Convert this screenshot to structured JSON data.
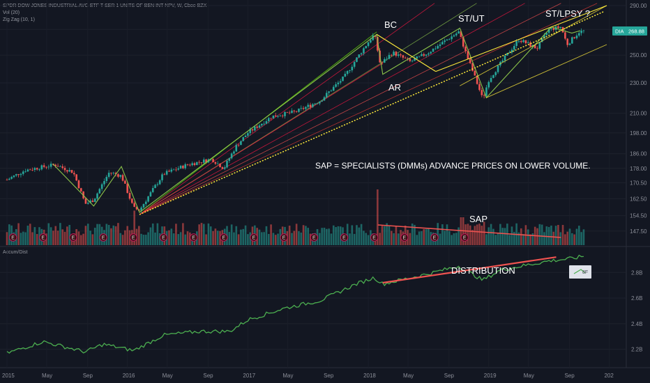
{
  "header": {
    "symbol_line": "SPDR DOW JONES INDUSTRIAL AVG ETF T SER 1 UNITS OF BEN INT NPV, W, Cboe BZX",
    "vol_line": "Vol (20)",
    "zigzag_line": "Zig Zag (10, 1)"
  },
  "lower_pane": {
    "title": "Accum/Dist"
  },
  "price_badge": {
    "ticker": "DIA",
    "value": "268.88"
  },
  "annotations": {
    "bc": "BC",
    "ar": "AR",
    "st_ut": "ST/UT",
    "st_lpsy": "ST/LPSY ?",
    "sap_note": "SAP = SPECIALISTS (DMMs) ADVANCE PRICES ON LOWER VOLUME.",
    "sap": "SAP",
    "distribution": "DISTRIBUTION",
    "earnings_marker": "E",
    "alert_icon": "bell-icon",
    "alert_value": "8F"
  },
  "colors": {
    "background": "#131722",
    "up": "#26a69a",
    "down": "#ef5350",
    "adline": "#4caf50",
    "trendline_yellow": "#ffeb3b",
    "fan_green": "#76ff03",
    "fan_red": "#ff1744"
  },
  "chart_data": {
    "type": "candlestick",
    "timeframe": "W",
    "price_axis_ticks": [
      "290.00",
      "270.00",
      "250.00",
      "230.00",
      "210.00",
      "198.00",
      "186.00",
      "178.00",
      "170.50",
      "162.50",
      "154.50",
      "147.50"
    ],
    "ad_axis_ticks": [
      "2.8B",
      "2.6B",
      "2.4B",
      "2.2B"
    ],
    "time_axis_ticks": [
      "2015",
      "May",
      "Sep",
      "2016",
      "May",
      "Sep",
      "2017",
      "May",
      "Sep",
      "2018",
      "May",
      "Sep",
      "2019",
      "May",
      "Sep",
      "202"
    ],
    "price_range": [
      145,
      290
    ],
    "ad_range": [
      2.1,
      2.97
    ],
    "last_price": 268.88,
    "price_path": [
      {
        "x": 2015.0,
        "y": 172
      },
      {
        "x": 2015.15,
        "y": 177
      },
      {
        "x": 2015.4,
        "y": 180
      },
      {
        "x": 2015.55,
        "y": 176
      },
      {
        "x": 2015.65,
        "y": 160
      },
      {
        "x": 2015.72,
        "y": 162
      },
      {
        "x": 2015.85,
        "y": 176
      },
      {
        "x": 2015.95,
        "y": 174
      },
      {
        "x": 2016.05,
        "y": 158
      },
      {
        "x": 2016.1,
        "y": 157
      },
      {
        "x": 2016.3,
        "y": 175
      },
      {
        "x": 2016.5,
        "y": 180
      },
      {
        "x": 2016.7,
        "y": 183
      },
      {
        "x": 2016.8,
        "y": 178
      },
      {
        "x": 2016.9,
        "y": 190
      },
      {
        "x": 2017.0,
        "y": 198
      },
      {
        "x": 2017.2,
        "y": 208
      },
      {
        "x": 2017.4,
        "y": 211
      },
      {
        "x": 2017.6,
        "y": 218
      },
      {
        "x": 2017.8,
        "y": 234
      },
      {
        "x": 2018.0,
        "y": 260
      },
      {
        "x": 2018.05,
        "y": 266
      },
      {
        "x": 2018.1,
        "y": 243
      },
      {
        "x": 2018.2,
        "y": 252
      },
      {
        "x": 2018.35,
        "y": 245
      },
      {
        "x": 2018.5,
        "y": 252
      },
      {
        "x": 2018.75,
        "y": 268
      },
      {
        "x": 2018.82,
        "y": 249
      },
      {
        "x": 2018.95,
        "y": 219
      },
      {
        "x": 2019.0,
        "y": 232
      },
      {
        "x": 2019.25,
        "y": 262
      },
      {
        "x": 2019.4,
        "y": 255
      },
      {
        "x": 2019.5,
        "y": 270
      },
      {
        "x": 2019.6,
        "y": 272
      },
      {
        "x": 2019.65,
        "y": 258
      },
      {
        "x": 2019.75,
        "y": 268
      },
      {
        "x": 2019.8,
        "y": 268.88
      }
    ],
    "zigzag": [
      {
        "x": 2015.38,
        "y": 180.5
      },
      {
        "x": 2015.72,
        "y": 159
      },
      {
        "x": 2015.95,
        "y": 179
      },
      {
        "x": 2016.1,
        "y": 156
      },
      {
        "x": 2018.07,
        "y": 266
      },
      {
        "x": 2018.12,
        "y": 236
      },
      {
        "x": 2018.76,
        "y": 271
      },
      {
        "x": 2018.98,
        "y": 220
      },
      {
        "x": 2019.52,
        "y": 272
      },
      {
        "x": 2019.69,
        "y": 267
      },
      {
        "x": 2019.76,
        "y": 269
      }
    ],
    "volume_spikes": [
      {
        "x": 2016.06,
        "rel": 0.62
      },
      {
        "x": 2018.08,
        "rel": 1.0
      },
      {
        "x": 2018.78,
        "rel": 0.5
      },
      {
        "x": 2018.96,
        "rel": 0.42
      }
    ],
    "ad_line": [
      {
        "x": 2015.0,
        "y": 2.17
      },
      {
        "x": 2015.3,
        "y": 2.26
      },
      {
        "x": 2015.65,
        "y": 2.18
      },
      {
        "x": 2015.8,
        "y": 2.24
      },
      {
        "x": 2016.05,
        "y": 2.19
      },
      {
        "x": 2016.3,
        "y": 2.31
      },
      {
        "x": 2016.6,
        "y": 2.34
      },
      {
        "x": 2016.85,
        "y": 2.34
      },
      {
        "x": 2017.0,
        "y": 2.43
      },
      {
        "x": 2017.3,
        "y": 2.52
      },
      {
        "x": 2017.6,
        "y": 2.58
      },
      {
        "x": 2017.9,
        "y": 2.71
      },
      {
        "x": 2018.05,
        "y": 2.76
      },
      {
        "x": 2018.12,
        "y": 2.71
      },
      {
        "x": 2018.5,
        "y": 2.79
      },
      {
        "x": 2018.75,
        "y": 2.85
      },
      {
        "x": 2018.95,
        "y": 2.74
      },
      {
        "x": 2019.1,
        "y": 2.82
      },
      {
        "x": 2019.5,
        "y": 2.89
      },
      {
        "x": 2019.7,
        "y": 2.91
      },
      {
        "x": 2019.8,
        "y": 2.93
      }
    ]
  }
}
